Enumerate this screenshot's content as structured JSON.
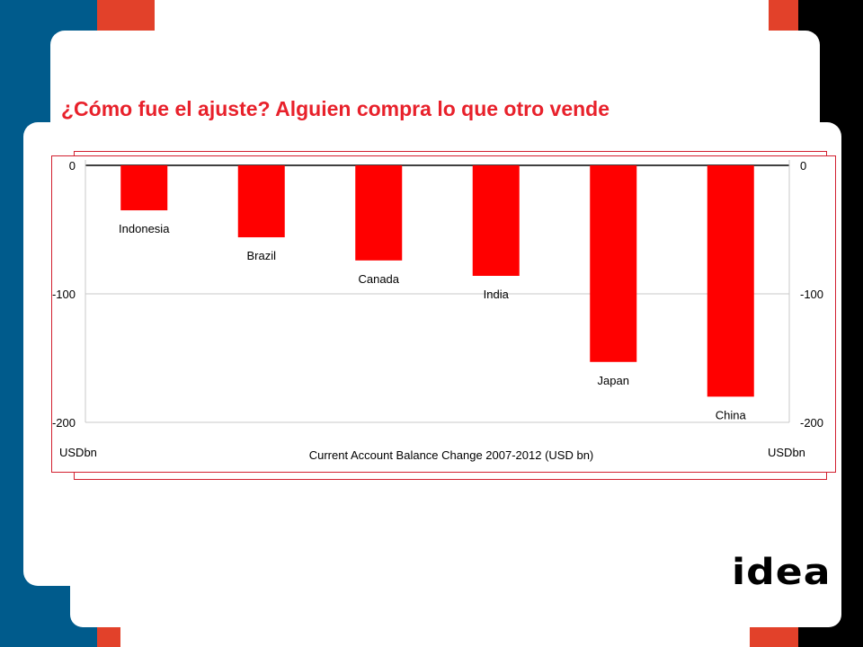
{
  "slide": {
    "title": "¿Cómo fue el ajuste? Alguien compra lo que otro vende",
    "logo_text": "idea",
    "colors": {
      "blue": "#005b8c",
      "red_accent": "#e2412a",
      "title_red": "#e8212b",
      "bar_red": "#ff0000",
      "frame_red": "#d2202f",
      "black": "#000000"
    }
  },
  "chart_data": {
    "type": "bar",
    "title": "Current Account Balance Change 2007-2012 (USD bn)",
    "categories": [
      "Indonesia",
      "Brazil",
      "Canada",
      "India",
      "Japan",
      "China"
    ],
    "values": [
      -35,
      -56,
      -74,
      -86,
      -153,
      -180
    ],
    "ylim": [
      -200,
      0
    ],
    "yticks": [
      0,
      -100,
      -200
    ],
    "ylabel_left": "USDbn",
    "ylabel_right": "USDbn",
    "grid": true,
    "bar_color": "#ff0000"
  }
}
